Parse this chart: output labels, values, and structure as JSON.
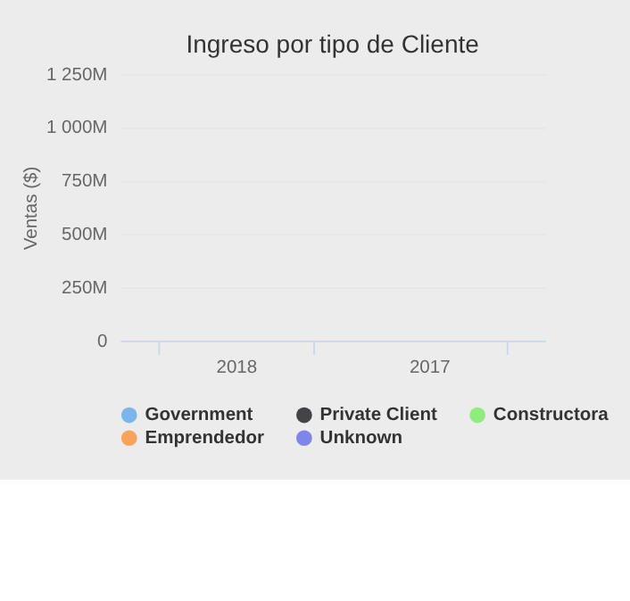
{
  "chart_data": {
    "type": "bar",
    "title": "Ingreso por tipo de Cliente",
    "ylabel": "Ventas ($)",
    "categories": [
      "2018",
      "2017"
    ],
    "series": [
      {
        "name": "Government",
        "color": "#7cb5ec",
        "values": [
          null,
          null
        ]
      },
      {
        "name": "Private Client",
        "color": "#434348",
        "values": [
          null,
          null
        ]
      },
      {
        "name": "Constructora",
        "color": "#90ed7d",
        "values": [
          null,
          null
        ]
      },
      {
        "name": "Emprendedor",
        "color": "#f7a35c",
        "values": [
          null,
          null
        ]
      },
      {
        "name": "Unknown",
        "color": "#8085e9",
        "values": [
          null,
          null
        ]
      }
    ],
    "ylim": [
      0,
      1250000000
    ],
    "yticks": [
      0,
      {
        "value": 250000000,
        "label": "250M"
      },
      {
        "value": 500000000,
        "label": "500M"
      },
      {
        "value": 750000000,
        "label": "750M"
      },
      {
        "value": 1000000000,
        "label": "1 000M"
      },
      {
        "value": 1250000000,
        "label": "1 250M"
      }
    ],
    "grid": "y",
    "legend": "bottom"
  }
}
